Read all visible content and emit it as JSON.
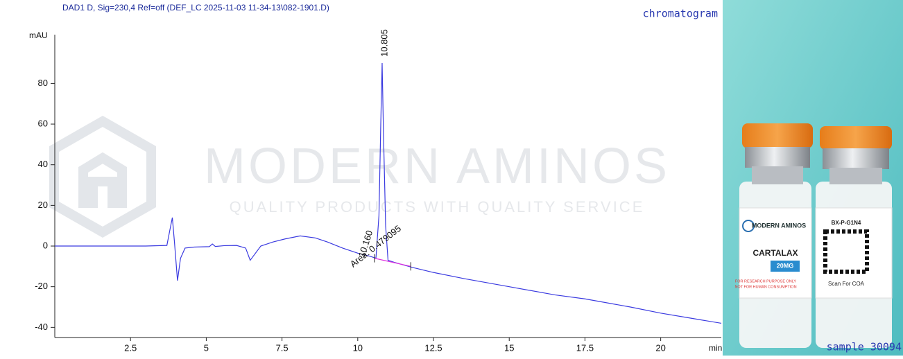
{
  "chart_data": {
    "type": "line",
    "title": "DAD1 D, Sig=230,4 Ref=off (DEF_LC 2025-11-03 11-34-13\\082-1901.D)",
    "ylabel": "mAU",
    "xlabel": "min",
    "x": [
      0,
      1,
      2,
      3,
      3.7,
      3.8,
      3.88,
      3.95,
      4.05,
      4.15,
      4.3,
      4.6,
      5.1,
      5.2,
      5.3,
      5.6,
      6.0,
      6.3,
      6.45,
      6.55,
      6.8,
      7.2,
      7.6,
      8.1,
      8.6,
      9.0,
      9.5,
      10.0,
      10.4,
      10.6,
      10.7,
      10.76,
      10.805,
      10.85,
      10.92,
      11.0,
      11.2,
      11.8,
      12.5,
      13.5,
      15,
      16.5,
      17.5,
      19,
      20,
      21,
      22
    ],
    "series": [
      {
        "color": "#3a3ae0",
        "values": [
          0,
          0,
          0,
          0,
          0.3,
          8,
          14,
          2,
          -17,
          -6,
          -1,
          -0.5,
          -0.3,
          1,
          -0.2,
          0.2,
          0.3,
          -1,
          -7,
          -5,
          0,
          2,
          3.5,
          5,
          4,
          2,
          -1,
          -3.5,
          -5,
          -6,
          15,
          60,
          90,
          55,
          10,
          -7,
          -8,
          -10.5,
          -13,
          -16,
          -20,
          -24,
          -26,
          -30,
          -33,
          -35.5,
          -38
        ]
      }
    ],
    "baseline": {
      "x": [
        10.55,
        11.75
      ],
      "values": [
        -6,
        -10
      ],
      "color": "#e030e0"
    },
    "xlim": [
      0,
      22
    ],
    "ylim": [
      -45,
      104
    ],
    "xticks": [
      2.5,
      5,
      7.5,
      10,
      12.5,
      15,
      17.5,
      20
    ],
    "yticks": [
      -40,
      -20,
      0,
      20,
      40,
      60,
      80
    ],
    "annotations": [
      "10.805",
      "10.160",
      "Area: 0.479095"
    ]
  },
  "watermark": {
    "title": "MODERN AMINOS",
    "subtitle": "QUALITY PRODUCTS WITH QUALITY SERVICE"
  },
  "overlay": {
    "top_right": "chromatogram",
    "bottom_right": "sample 30094"
  },
  "photo": {
    "brand": "MODERN AMINOS",
    "product": "CARTALAX",
    "dose": "20MG",
    "warning": [
      "FOR RESEARCH PURPOSE ONLY",
      "NOT FOR HUMAN CONSUMPTION"
    ],
    "batch": "BX-P-G1N4",
    "scan": "Scan For COA"
  }
}
